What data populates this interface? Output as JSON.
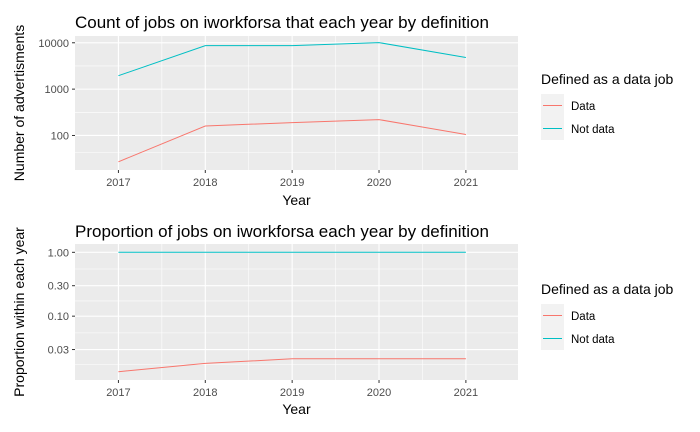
{
  "chart_data": [
    {
      "type": "line",
      "title": "Count of jobs on iworkforsa that  each year by definition",
      "xlabel": "Year",
      "ylabel": "Number of advertisments",
      "yscale": "log10",
      "x": [
        2017,
        2018,
        2019,
        2020,
        2021
      ],
      "x_ticks": [
        "2017",
        "2018",
        "2019",
        "2020",
        "2021"
      ],
      "xlim": [
        2016.5,
        2021.6
      ],
      "y_ticks": [
        100,
        1000,
        10000
      ],
      "y_tick_labels": [
        "100",
        "1000",
        "10000"
      ],
      "ylim": [
        18,
        14000
      ],
      "grid": true,
      "legend": {
        "title": "Defined as a data job",
        "position": "right",
        "entries": [
          {
            "label": "Data",
            "color": "#F8766D"
          },
          {
            "label": "Not data",
            "color": "#00BFC4"
          }
        ]
      },
      "series": [
        {
          "name": "Data",
          "color": "#F8766D",
          "values": [
            27,
            160,
            190,
            220,
            105
          ]
        },
        {
          "name": "Not data",
          "color": "#00BFC4",
          "values": [
            1950,
            8700,
            8700,
            10100,
            4800
          ]
        }
      ]
    },
    {
      "type": "line",
      "title": "Proportion of jobs on iworkforsa each year by definition",
      "xlabel": "Year",
      "ylabel": "Proportion within each year",
      "yscale": "log10",
      "x": [
        2017,
        2018,
        2019,
        2020,
        2021
      ],
      "x_ticks": [
        "2017",
        "2018",
        "2019",
        "2020",
        "2021"
      ],
      "xlim": [
        2016.5,
        2021.6
      ],
      "y_ticks": [
        0.03,
        0.1,
        0.3,
        1.0
      ],
      "y_tick_labels": [
        "0.03",
        "0.10",
        "0.30",
        "1.00"
      ],
      "ylim": [
        0.01,
        1.35
      ],
      "grid": true,
      "legend": {
        "title": "Defined as a data job",
        "position": "right",
        "entries": [
          {
            "label": "Data",
            "color": "#F8766D"
          },
          {
            "label": "Not data",
            "color": "#00BFC4"
          }
        ]
      },
      "series": [
        {
          "name": "Data",
          "color": "#F8766D",
          "values": [
            0.0135,
            0.0182,
            0.0215,
            0.0215,
            0.0215
          ]
        },
        {
          "name": "Not data",
          "color": "#00BFC4",
          "values": [
            1.0,
            1.0,
            1.0,
            1.0,
            1.0
          ]
        }
      ]
    }
  ]
}
